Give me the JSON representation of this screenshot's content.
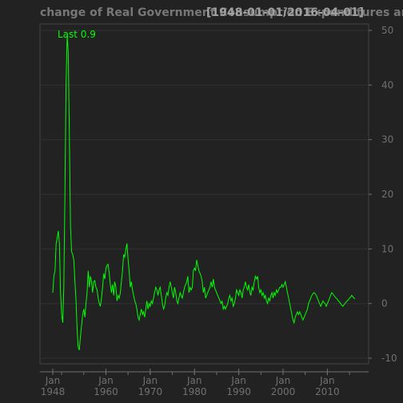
{
  "chart_data": {
    "type": "line",
    "title": "change of Real Government Consumption Expenditures and Gross Investment",
    "date_range": "[1948-01-01/2016-04-01]",
    "last_label": "Last 0.9",
    "series": [
      {
        "values": [
          [
            1948.0,
            2.0
          ],
          [
            1948.25,
            5.0
          ],
          [
            1948.5,
            6.0
          ],
          [
            1948.75,
            11.0
          ],
          [
            1949.0,
            12.0
          ],
          [
            1949.25,
            13.3
          ],
          [
            1949.5,
            11.0
          ],
          [
            1949.75,
            2.0
          ],
          [
            1950.0,
            -2.0
          ],
          [
            1950.25,
            -3.5
          ],
          [
            1950.5,
            3.0
          ],
          [
            1950.75,
            20.0
          ],
          [
            1951.0,
            40.0
          ],
          [
            1951.25,
            49.0
          ],
          [
            1951.5,
            46.0
          ],
          [
            1951.75,
            30.0
          ],
          [
            1952.0,
            14.0
          ],
          [
            1952.25,
            9.5
          ],
          [
            1952.5,
            9.0
          ],
          [
            1952.75,
            8.0
          ],
          [
            1953.0,
            4.0
          ],
          [
            1953.25,
            0.5
          ],
          [
            1953.5,
            -5.0
          ],
          [
            1953.75,
            -8.0
          ],
          [
            1954.0,
            -8.5
          ],
          [
            1954.25,
            -6.0
          ],
          [
            1954.5,
            -4.0
          ],
          [
            1954.75,
            -2.0
          ],
          [
            1955.0,
            -1.0
          ],
          [
            1955.25,
            -2.5
          ],
          [
            1955.5,
            0.0
          ],
          [
            1955.75,
            2.0
          ],
          [
            1956.0,
            6.0
          ],
          [
            1956.25,
            3.0
          ],
          [
            1956.5,
            5.0
          ],
          [
            1956.75,
            4.0
          ],
          [
            1957.0,
            2.0
          ],
          [
            1957.25,
            4.0
          ],
          [
            1957.5,
            4.2
          ],
          [
            1957.75,
            3.0
          ],
          [
            1958.0,
            2.5
          ],
          [
            1958.25,
            1.0
          ],
          [
            1958.5,
            0.0
          ],
          [
            1958.75,
            -0.5
          ],
          [
            1959.0,
            1.0
          ],
          [
            1959.25,
            3.0
          ],
          [
            1959.5,
            5.5
          ],
          [
            1959.75,
            4.5
          ],
          [
            1960.0,
            6.5
          ],
          [
            1960.25,
            7.0
          ],
          [
            1960.5,
            7.2
          ],
          [
            1960.75,
            5.5
          ],
          [
            1961.0,
            3.5
          ],
          [
            1961.25,
            2.0
          ],
          [
            1961.5,
            3.5
          ],
          [
            1961.75,
            1.5
          ],
          [
            1962.0,
            4.0
          ],
          [
            1962.25,
            3.0
          ],
          [
            1962.5,
            0.5
          ],
          [
            1962.75,
            1.5
          ],
          [
            1963.0,
            1.0
          ],
          [
            1963.25,
            2.0
          ],
          [
            1963.5,
            4.0
          ],
          [
            1963.75,
            6.0
          ],
          [
            1964.0,
            9.0
          ],
          [
            1964.25,
            8.5
          ],
          [
            1964.5,
            10.0
          ],
          [
            1964.75,
            11.0
          ],
          [
            1965.0,
            8.0
          ],
          [
            1965.25,
            6.0
          ],
          [
            1965.5,
            3.0
          ],
          [
            1965.75,
            4.0
          ],
          [
            1966.0,
            2.5
          ],
          [
            1966.25,
            1.5
          ],
          [
            1966.5,
            0.5
          ],
          [
            1966.75,
            0.0
          ],
          [
            1967.0,
            -1.0
          ],
          [
            1967.25,
            -2.5
          ],
          [
            1967.5,
            -3.0
          ],
          [
            1967.75,
            -2.0
          ],
          [
            1968.0,
            -1.0
          ],
          [
            1968.25,
            -2.0
          ],
          [
            1968.5,
            -1.5
          ],
          [
            1968.75,
            -2.5
          ],
          [
            1969.0,
            -1.0
          ],
          [
            1969.25,
            0.5
          ],
          [
            1969.5,
            -1.0
          ],
          [
            1969.75,
            0.0
          ],
          [
            1970.0,
            -0.5
          ],
          [
            1970.25,
            0.5
          ],
          [
            1970.5,
            0.0
          ],
          [
            1970.75,
            1.0
          ],
          [
            1971.0,
            2.0
          ],
          [
            1971.25,
            3.0
          ],
          [
            1971.5,
            2.5
          ],
          [
            1971.75,
            1.5
          ],
          [
            1972.0,
            2.5
          ],
          [
            1972.25,
            3.0
          ],
          [
            1972.5,
            1.5
          ],
          [
            1972.75,
            0.0
          ],
          [
            1973.0,
            -1.0
          ],
          [
            1973.25,
            -0.5
          ],
          [
            1973.5,
            1.0
          ],
          [
            1973.75,
            2.0
          ],
          [
            1974.0,
            1.5
          ],
          [
            1974.25,
            3.0
          ],
          [
            1974.5,
            4.0
          ],
          [
            1974.75,
            3.0
          ],
          [
            1975.0,
            2.0
          ],
          [
            1975.25,
            1.0
          ],
          [
            1975.5,
            3.0
          ],
          [
            1975.75,
            2.0
          ],
          [
            1976.0,
            0.5
          ],
          [
            1976.25,
            0.0
          ],
          [
            1976.5,
            1.0
          ],
          [
            1976.75,
            2.0
          ],
          [
            1977.0,
            1.5
          ],
          [
            1977.25,
            1.0
          ],
          [
            1977.5,
            2.0
          ],
          [
            1977.75,
            3.0
          ],
          [
            1978.0,
            3.5
          ],
          [
            1978.25,
            4.0
          ],
          [
            1978.5,
            5.0
          ],
          [
            1978.75,
            2.0
          ],
          [
            1979.0,
            3.0
          ],
          [
            1979.25,
            2.5
          ],
          [
            1979.5,
            3.0
          ],
          [
            1979.75,
            6.0
          ],
          [
            1980.0,
            6.5
          ],
          [
            1980.25,
            6.0
          ],
          [
            1980.5,
            8.0
          ],
          [
            1980.75,
            7.0
          ],
          [
            1981.0,
            6.0
          ],
          [
            1981.25,
            5.5
          ],
          [
            1981.5,
            5.0
          ],
          [
            1981.75,
            4.0
          ],
          [
            1982.0,
            2.0
          ],
          [
            1982.25,
            3.0
          ],
          [
            1982.5,
            1.0
          ],
          [
            1982.75,
            1.5
          ],
          [
            1983.0,
            2.0
          ],
          [
            1983.25,
            2.5
          ],
          [
            1983.5,
            3.0
          ],
          [
            1983.75,
            4.0
          ],
          [
            1984.0,
            3.0
          ],
          [
            1984.25,
            4.5
          ],
          [
            1984.5,
            3.0
          ],
          [
            1984.75,
            2.5
          ],
          [
            1985.0,
            2.0
          ],
          [
            1985.25,
            1.5
          ],
          [
            1985.5,
            1.0
          ],
          [
            1985.75,
            0.5
          ],
          [
            1986.0,
            0.0
          ],
          [
            1986.25,
            0.5
          ],
          [
            1986.5,
            -1.0
          ],
          [
            1986.75,
            -0.5
          ],
          [
            1987.0,
            -1.0
          ],
          [
            1987.25,
            -0.5
          ],
          [
            1987.5,
            0.0
          ],
          [
            1987.75,
            1.0
          ],
          [
            1988.0,
            1.5
          ],
          [
            1988.25,
            0.5
          ],
          [
            1988.5,
            1.0
          ],
          [
            1988.75,
            -0.5
          ],
          [
            1989.0,
            0.0
          ],
          [
            1989.25,
            1.0
          ],
          [
            1989.5,
            2.5
          ],
          [
            1989.75,
            2.0
          ],
          [
            1990.0,
            1.5
          ],
          [
            1990.25,
            2.5
          ],
          [
            1990.5,
            2.0
          ],
          [
            1990.75,
            1.0
          ],
          [
            1991.0,
            2.5
          ],
          [
            1991.25,
            3.0
          ],
          [
            1991.5,
            4.0
          ],
          [
            1991.75,
            3.0
          ],
          [
            1992.0,
            2.5
          ],
          [
            1992.25,
            3.5
          ],
          [
            1992.5,
            2.0
          ],
          [
            1992.75,
            1.5
          ],
          [
            1993.0,
            3.0
          ],
          [
            1993.25,
            2.5
          ],
          [
            1993.5,
            4.0
          ],
          [
            1993.75,
            5.0
          ],
          [
            1994.0,
            4.5
          ],
          [
            1994.25,
            5.0
          ],
          [
            1994.5,
            3.0
          ],
          [
            1994.75,
            2.0
          ],
          [
            1995.0,
            2.5
          ],
          [
            1995.25,
            1.5
          ],
          [
            1995.5,
            2.0
          ],
          [
            1995.75,
            1.0
          ],
          [
            1996.0,
            1.5
          ],
          [
            1996.25,
            0.5
          ],
          [
            1996.5,
            0.0
          ],
          [
            1996.75,
            1.0
          ],
          [
            1997.0,
            0.5
          ],
          [
            1997.25,
            1.5
          ],
          [
            1997.5,
            2.0
          ],
          [
            1997.75,
            1.0
          ],
          [
            1998.0,
            2.0
          ],
          [
            1998.25,
            1.5
          ],
          [
            1998.5,
            2.5
          ],
          [
            1998.75,
            2.0
          ],
          [
            1999.0,
            2.5
          ],
          [
            1999.25,
            3.0
          ],
          [
            1999.5,
            3.0
          ],
          [
            1999.75,
            3.5
          ],
          [
            2000.0,
            3.0
          ],
          [
            2000.25,
            3.5
          ],
          [
            2000.5,
            4.0
          ],
          [
            2000.75,
            3.0
          ],
          [
            2001.0,
            2.0
          ],
          [
            2001.25,
            1.0
          ],
          [
            2001.5,
            0.0
          ],
          [
            2001.75,
            -1.0
          ],
          [
            2002.0,
            -2.0
          ],
          [
            2002.25,
            -3.0
          ],
          [
            2002.5,
            -3.5
          ],
          [
            2002.75,
            -2.5
          ],
          [
            2003.0,
            -2.0
          ],
          [
            2003.25,
            -1.5
          ],
          [
            2003.5,
            -2.0
          ],
          [
            2003.75,
            -1.5
          ],
          [
            2004.0,
            -2.0
          ],
          [
            2004.25,
            -2.5
          ],
          [
            2004.5,
            -3.0
          ],
          [
            2004.75,
            -2.5
          ],
          [
            2005.0,
            -2.0
          ],
          [
            2005.25,
            -1.5
          ],
          [
            2005.5,
            -1.0
          ],
          [
            2005.75,
            0.0
          ],
          [
            2006.0,
            0.5
          ],
          [
            2006.25,
            1.0
          ],
          [
            2006.5,
            1.5
          ],
          [
            2006.75,
            1.8
          ],
          [
            2007.0,
            2.0
          ],
          [
            2007.25,
            1.8
          ],
          [
            2007.5,
            1.5
          ],
          [
            2007.75,
            1.0
          ],
          [
            2008.0,
            0.5
          ],
          [
            2008.25,
            0.0
          ],
          [
            2008.5,
            -0.5
          ],
          [
            2008.75,
            0.0
          ],
          [
            2009.0,
            0.5
          ],
          [
            2009.25,
            0.2
          ],
          [
            2009.5,
            0.0
          ],
          [
            2009.75,
            -0.5
          ],
          [
            2010.0,
            0.0
          ],
          [
            2010.25,
            0.5
          ],
          [
            2010.5,
            1.0
          ],
          [
            2010.75,
            1.5
          ],
          [
            2011.0,
            2.0
          ],
          [
            2011.25,
            1.8
          ],
          [
            2011.5,
            1.5
          ],
          [
            2011.75,
            1.2
          ],
          [
            2012.0,
            1.0
          ],
          [
            2012.25,
            0.8
          ],
          [
            2012.5,
            0.5
          ],
          [
            2012.75,
            0.3
          ],
          [
            2013.0,
            0.0
          ],
          [
            2013.25,
            -0.3
          ],
          [
            2013.5,
            -0.5
          ],
          [
            2013.75,
            -0.2
          ],
          [
            2014.0,
            0.0
          ],
          [
            2014.25,
            0.3
          ],
          [
            2014.5,
            0.5
          ],
          [
            2014.75,
            0.7
          ],
          [
            2015.0,
            1.0
          ],
          [
            2015.25,
            1.2
          ],
          [
            2015.5,
            1.5
          ],
          [
            2015.75,
            1.3
          ],
          [
            2016.0,
            1.0
          ],
          [
            2016.25,
            0.9
          ]
        ]
      }
    ],
    "x_ticks": [
      {
        "value": 1948,
        "line1": "Jan",
        "line2": "1948"
      },
      {
        "value": 1960,
        "line1": "Jan",
        "line2": "1960"
      },
      {
        "value": 1970,
        "line1": "Jan",
        "line2": "1970"
      },
      {
        "value": 1980,
        "line1": "Jan",
        "line2": "1980"
      },
      {
        "value": 1990,
        "line1": "Jan",
        "line2": "1990"
      },
      {
        "value": 2000,
        "line1": "Jan",
        "line2": "2000"
      },
      {
        "value": 2010,
        "line1": "Jan",
        "line2": "2010"
      }
    ],
    "y_ticks": [
      -10,
      0,
      10,
      20,
      30,
      40,
      50
    ],
    "xlim": [
      1948.0,
      2016.25
    ],
    "ylim": [
      -10,
      50
    ],
    "grid": true,
    "axis_position": "right",
    "colors": {
      "background": "#222222",
      "line": "#00ff00",
      "grid": "#303030",
      "axis": "#707070",
      "title": "#777777",
      "title_range": "#a0a0a0"
    }
  }
}
